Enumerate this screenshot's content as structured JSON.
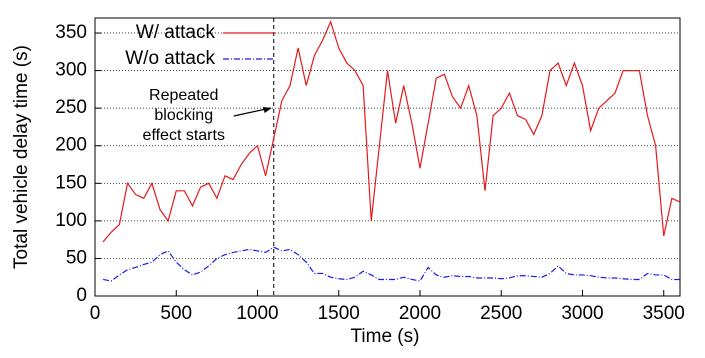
{
  "chart_data": {
    "type": "line",
    "xlabel": "Time (s)",
    "ylabel": "Total vehicle delay time (s)",
    "x": [
      50,
      100,
      150,
      200,
      250,
      300,
      350,
      400,
      450,
      500,
      550,
      600,
      650,
      700,
      750,
      800,
      850,
      900,
      950,
      1000,
      1050,
      1100,
      1150,
      1200,
      1250,
      1300,
      1350,
      1400,
      1450,
      1500,
      1550,
      1600,
      1650,
      1700,
      1750,
      1800,
      1850,
      1900,
      1950,
      2000,
      2050,
      2100,
      2150,
      2200,
      2250,
      2300,
      2350,
      2400,
      2450,
      2500,
      2550,
      2600,
      2650,
      2700,
      2750,
      2800,
      2850,
      2900,
      2950,
      3000,
      3050,
      3100,
      3150,
      3200,
      3250,
      3300,
      3350,
      3400,
      3450,
      3500,
      3550,
      3600
    ],
    "series": [
      {
        "name": "W/ attack",
        "color": "#e41a1c",
        "dash": "solid",
        "values": [
          72,
          85,
          95,
          150,
          135,
          130,
          150,
          115,
          100,
          140,
          140,
          120,
          145,
          150,
          130,
          160,
          155,
          175,
          190,
          200,
          160,
          210,
          260,
          280,
          330,
          280,
          320,
          340,
          365,
          330,
          310,
          300,
          280,
          100,
          200,
          300,
          230,
          280,
          230,
          170,
          230,
          290,
          295,
          265,
          250,
          280,
          240,
          140,
          240,
          250,
          270,
          240,
          235,
          215,
          240,
          300,
          310,
          280,
          310,
          280,
          220,
          250,
          260,
          270,
          300,
          300,
          300,
          240,
          200,
          80,
          130,
          125
        ]
      },
      {
        "name": "W/o attack",
        "color": "#1a1aee",
        "dash": "dashdot",
        "values": [
          22,
          20,
          28,
          35,
          38,
          42,
          45,
          55,
          60,
          45,
          35,
          28,
          32,
          40,
          50,
          55,
          58,
          60,
          62,
          60,
          58,
          65,
          60,
          62,
          55,
          45,
          30,
          30,
          25,
          23,
          22,
          25,
          33,
          28,
          22,
          22,
          22,
          25,
          22,
          20,
          38,
          28,
          25,
          27,
          26,
          26,
          24,
          24,
          24,
          23,
          24,
          27,
          27,
          26,
          25,
          30,
          40,
          30,
          28,
          28,
          27,
          25,
          24,
          24,
          23,
          22,
          22,
          30,
          28,
          28,
          22,
          22
        ]
      }
    ],
    "xlim": [
      0,
      3600
    ],
    "xticks": [
      0,
      500,
      1000,
      1500,
      2000,
      2500,
      3000,
      3500
    ],
    "ylim": [
      0,
      370
    ],
    "yticks": [
      0,
      50,
      100,
      150,
      200,
      250,
      300,
      350
    ],
    "grid": true,
    "legend": "top-left",
    "vline": 1100,
    "annotation": [
      "Repeated",
      "blocking",
      "effect starts"
    ]
  }
}
